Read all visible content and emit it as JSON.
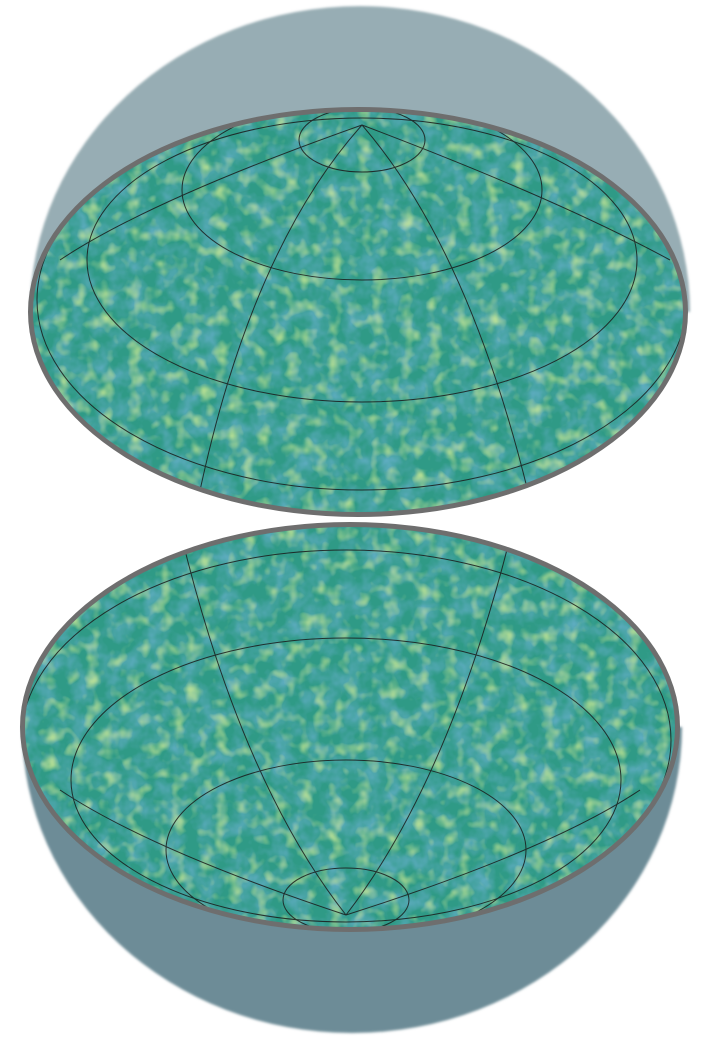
{
  "scene": {
    "description_free": true,
    "colors": {
      "background": "#ffffff",
      "upper_shell": "#97adb4",
      "lower_shell": "#6d8c97",
      "rim": "#6e6e6e",
      "map_base": "#2f9a86",
      "map_dark": "#2e5e8c",
      "map_mid": "#27a77f",
      "map_light": "#b8d94a",
      "graticule": "#1b1b1b"
    }
  }
}
